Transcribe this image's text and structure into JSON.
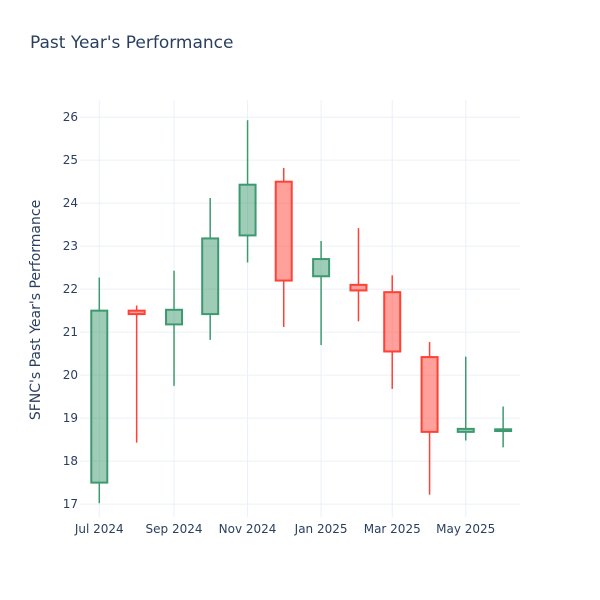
{
  "chart_data": {
    "type": "candlestick",
    "title": "Past Year's Performance",
    "ylabel": "SFNC's Past Year's Performance",
    "xlabel": "",
    "ylim": [
      16.7,
      26.4
    ],
    "yticks": [
      17,
      18,
      19,
      20,
      21,
      22,
      23,
      24,
      25,
      26
    ],
    "xticks": [
      {
        "date": "2024-07-01",
        "label": "Jul 2024"
      },
      {
        "date": "2024-09-01",
        "label": "Sep 2024"
      },
      {
        "date": "2024-11-01",
        "label": "Nov 2024"
      },
      {
        "date": "2025-01-01",
        "label": "Jan 2025"
      },
      {
        "date": "2025-03-01",
        "label": "Mar 2025"
      },
      {
        "date": "2025-05-01",
        "label": "May 2025"
      }
    ],
    "xlim": [
      "2024-06-15",
      "2025-06-15"
    ],
    "grid": true,
    "increasing_color": "#3d9970",
    "decreasing_color": "#ff4136",
    "candles": [
      {
        "date": "2024-07-01",
        "open": 17.5,
        "high": 22.27,
        "low": 17.02,
        "close": 21.5
      },
      {
        "date": "2024-08-01",
        "open": 21.5,
        "high": 21.62,
        "low": 18.43,
        "close": 21.42
      },
      {
        "date": "2024-09-01",
        "open": 21.18,
        "high": 22.43,
        "low": 19.75,
        "close": 21.52
      },
      {
        "date": "2024-10-01",
        "open": 21.42,
        "high": 24.12,
        "low": 20.82,
        "close": 23.18
      },
      {
        "date": "2024-11-01",
        "open": 23.25,
        "high": 25.93,
        "low": 22.62,
        "close": 24.43
      },
      {
        "date": "2024-12-01",
        "open": 24.5,
        "high": 24.82,
        "low": 21.12,
        "close": 22.2
      },
      {
        "date": "2025-01-01",
        "open": 22.3,
        "high": 23.12,
        "low": 20.7,
        "close": 22.7
      },
      {
        "date": "2025-02-01",
        "open": 22.1,
        "high": 23.42,
        "low": 21.25,
        "close": 21.97
      },
      {
        "date": "2025-03-01",
        "open": 21.93,
        "high": 22.32,
        "low": 19.68,
        "close": 20.55
      },
      {
        "date": "2025-04-01",
        "open": 20.42,
        "high": 20.77,
        "low": 17.22,
        "close": 18.68
      },
      {
        "date": "2025-05-01",
        "open": 18.68,
        "high": 20.43,
        "low": 18.48,
        "close": 18.75
      },
      {
        "date": "2025-06-01",
        "open": 18.7,
        "high": 19.27,
        "low": 18.32,
        "close": 18.74
      }
    ]
  }
}
